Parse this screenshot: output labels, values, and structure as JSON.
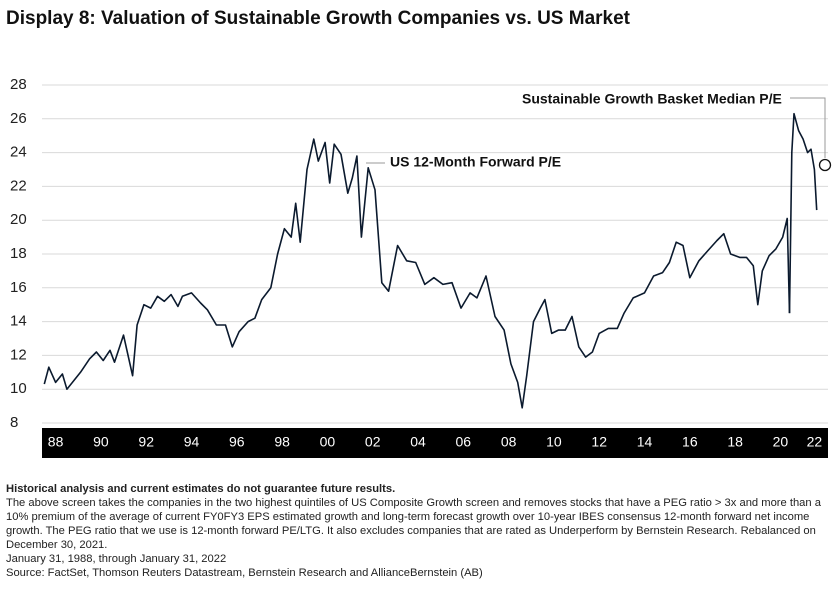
{
  "chart_data": {
    "type": "line",
    "title": "Display 8: Valuation of Sustainable Growth Companies vs. US Market",
    "xlim": [
      1987.9,
      2022.6
    ],
    "xticks": [
      {
        "value": 1988.5,
        "label": "88"
      },
      {
        "value": 1990.5,
        "label": "90"
      },
      {
        "value": 1992.5,
        "label": "92"
      },
      {
        "value": 1994.5,
        "label": "94"
      },
      {
        "value": 1996.5,
        "label": "96"
      },
      {
        "value": 1998.5,
        "label": "98"
      },
      {
        "value": 2000.5,
        "label": "00"
      },
      {
        "value": 2002.5,
        "label": "02"
      },
      {
        "value": 2004.5,
        "label": "04"
      },
      {
        "value": 2006.5,
        "label": "06"
      },
      {
        "value": 2008.5,
        "label": "08"
      },
      {
        "value": 2010.5,
        "label": "10"
      },
      {
        "value": 2012.5,
        "label": "12"
      },
      {
        "value": 2014.5,
        "label": "14"
      },
      {
        "value": 2016.5,
        "label": "16"
      },
      {
        "value": 2018.5,
        "label": "18"
      },
      {
        "value": 2020.5,
        "label": "20"
      },
      {
        "value": 2022.0,
        "label": "22"
      }
    ],
    "ylim": [
      8,
      28
    ],
    "yticks": [
      8,
      10,
      12,
      14,
      16,
      18,
      20,
      22,
      24,
      26,
      28
    ],
    "grid": true,
    "series": [
      {
        "name": "US 12-Month Forward P/E",
        "color": "#0b1a2e",
        "x": [
          1988.0,
          1988.2,
          1988.5,
          1988.8,
          1989.0,
          1989.3,
          1989.6,
          1990.0,
          1990.3,
          1990.6,
          1990.9,
          1991.1,
          1991.5,
          1991.9,
          1992.1,
          1992.4,
          1992.7,
          1993.0,
          1993.3,
          1993.6,
          1993.9,
          1994.1,
          1994.5,
          1994.9,
          1995.2,
          1995.6,
          1996.0,
          1996.3,
          1996.6,
          1997.0,
          1997.3,
          1997.6,
          1998.0,
          1998.3,
          1998.6,
          1998.9,
          1999.1,
          1999.3,
          1999.6,
          1999.9,
          2000.1,
          2000.4,
          2000.6,
          2000.8,
          2001.1,
          2001.4,
          2001.6,
          2001.8,
          2002.0,
          2002.3,
          2002.6,
          2002.9,
          2003.2,
          2003.6,
          2004.0,
          2004.4,
          2004.8,
          2005.2,
          2005.6,
          2006.0,
          2006.4,
          2006.8,
          2007.1,
          2007.5,
          2007.9,
          2008.3,
          2008.6,
          2008.9,
          2009.1,
          2009.3,
          2009.6,
          2009.9,
          2010.1,
          2010.4,
          2010.7,
          2011.0,
          2011.3,
          2011.6,
          2011.9,
          2012.2,
          2012.5,
          2012.9,
          2013.3,
          2013.6,
          2014.0,
          2014.5,
          2014.9,
          2015.3,
          2015.6,
          2015.9,
          2016.2,
          2016.5,
          2016.9,
          2017.3,
          2017.7,
          2018.0,
          2018.3,
          2018.7,
          2019.0,
          2019.3,
          2019.5,
          2019.7,
          2020.0,
          2020.3,
          2020.6,
          2020.8,
          2020.9
        ],
        "values": [
          10.3,
          11.3,
          10.4,
          10.9,
          10.0,
          10.5,
          11.0,
          11.8,
          12.2,
          11.7,
          12.3,
          11.6,
          13.2,
          10.8,
          13.8,
          15.0,
          14.8,
          15.5,
          15.2,
          15.6,
          14.9,
          15.5,
          15.7,
          15.1,
          14.7,
          13.8,
          13.8,
          12.5,
          13.4,
          14.0,
          14.2,
          15.3,
          16.0,
          18.0,
          19.5,
          19.0,
          21.0,
          18.7,
          23.0,
          24.8,
          23.5,
          24.6,
          22.2,
          24.5,
          23.9,
          21.6,
          22.5,
          23.8,
          19.0,
          23.1,
          21.8,
          16.3,
          15.8,
          18.5,
          17.6,
          17.5,
          16.2,
          16.6,
          16.2,
          16.3,
          14.8,
          15.7,
          15.4,
          16.7,
          14.3,
          13.5,
          11.5,
          10.4,
          8.9,
          10.8,
          14.0,
          14.8,
          15.3,
          13.3,
          13.5,
          13.5,
          14.3,
          12.5,
          11.9,
          12.2,
          13.3,
          13.6,
          13.6,
          14.5,
          15.4,
          15.7,
          16.7,
          16.9,
          17.5,
          18.7,
          18.5,
          16.6,
          17.6,
          18.2,
          18.8,
          19.2,
          18.0,
          17.8,
          17.8,
          17.3,
          15.0,
          17.0,
          17.9,
          18.3,
          19.0,
          20.1,
          14.5
        ]
      },
      {
        "name": "Sustainable Growth Basket Median P/E",
        "color": "#0b1a2e",
        "x": [
          2020.9,
          2021.0,
          2021.1,
          2021.3,
          2021.5,
          2021.7,
          2021.85,
          2022.0,
          2022.1
        ],
        "values": [
          14.5,
          24.0,
          26.3,
          25.3,
          24.8,
          24.0,
          24.2,
          23.0,
          20.6
        ]
      }
    ],
    "notes_heading": "Historical analysis and current estimates do not guarantee future results.",
    "notes": [
      "The above screen takes the companies in the two highest quintiles of  US Composite Growth screen and removes stocks that have a PEG ratio > 3x and more than a 10% premium of the average of current FY0FY3 EPS estimated growth and long-term forecast growth over 10-year IBES consensus 12-month forward net income growth. The PEG ratio that we use is 12-month forward PE/LTG. It also excludes companies that are rated as Underperform by Bernstein Research. Rebalanced on December 30, 2021.",
      "January 31, 1988, through January 31, 2022",
      "Source: FactSet, Thomson Reuters Datastream, Bernstein Research and AllianceBernstein (AB)"
    ]
  }
}
